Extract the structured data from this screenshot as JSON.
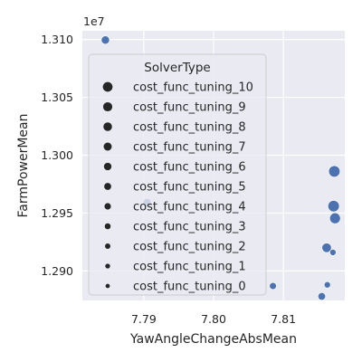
{
  "chart_data": {
    "type": "scatter",
    "xlabel": "YawAngleChangeAbsMean",
    "ylabel": "FarmPowerMean",
    "y_offset_label": "1e7",
    "xlim": [
      7.7812,
      7.8188
    ],
    "ylim": [
      12.8745,
      13.1075
    ],
    "x_ticks": [
      7.79,
      7.8,
      7.81
    ],
    "x_tick_labels": [
      "7.79",
      "7.80",
      "7.81"
    ],
    "y_ticks": [
      12.9,
      12.95,
      13.0,
      13.05,
      13.1
    ],
    "y_tick_labels": [
      "1.290",
      "1.295",
      "1.300",
      "1.305",
      "1.310"
    ],
    "grid": true,
    "legend_position": "upper-left",
    "legend_title": "SolverType",
    "colors": {
      "point": "#4c72b0",
      "background": "#eaeaf2",
      "grid": "#ffffff"
    },
    "legend_entries": [
      {
        "label": "cost_func_tuning_10",
        "size": 10
      },
      {
        "label": "cost_func_tuning_9",
        "size": 9
      },
      {
        "label": "cost_func_tuning_8",
        "size": 8
      },
      {
        "label": "cost_func_tuning_7",
        "size": 7
      },
      {
        "label": "cost_func_tuning_6",
        "size": 6
      },
      {
        "label": "cost_func_tuning_5",
        "size": 5
      },
      {
        "label": "cost_func_tuning_4",
        "size": 4
      },
      {
        "label": "cost_func_tuning_3",
        "size": 3
      },
      {
        "label": "cost_func_tuning_2",
        "size": 2
      },
      {
        "label": "cost_func_tuning_1",
        "size": 1
      },
      {
        "label": "cost_func_tuning_0",
        "size": 0
      }
    ],
    "points": [
      {
        "x": 7.7845,
        "y": 13.0995,
        "size": 5
      },
      {
        "x": 7.7905,
        "y": 12.959,
        "size": 5
      },
      {
        "x": 7.8173,
        "y": 12.986,
        "size": 10
      },
      {
        "x": 7.8172,
        "y": 12.956,
        "size": 10
      },
      {
        "x": 7.8174,
        "y": 12.9455,
        "size": 9
      },
      {
        "x": 7.8162,
        "y": 12.92,
        "size": 7
      },
      {
        "x": 7.8171,
        "y": 12.916,
        "size": 2
      },
      {
        "x": 7.8085,
        "y": 12.887,
        "size": 3
      },
      {
        "x": 7.8163,
        "y": 12.888,
        "size": 2
      },
      {
        "x": 7.8155,
        "y": 12.878,
        "size": 4
      }
    ]
  }
}
